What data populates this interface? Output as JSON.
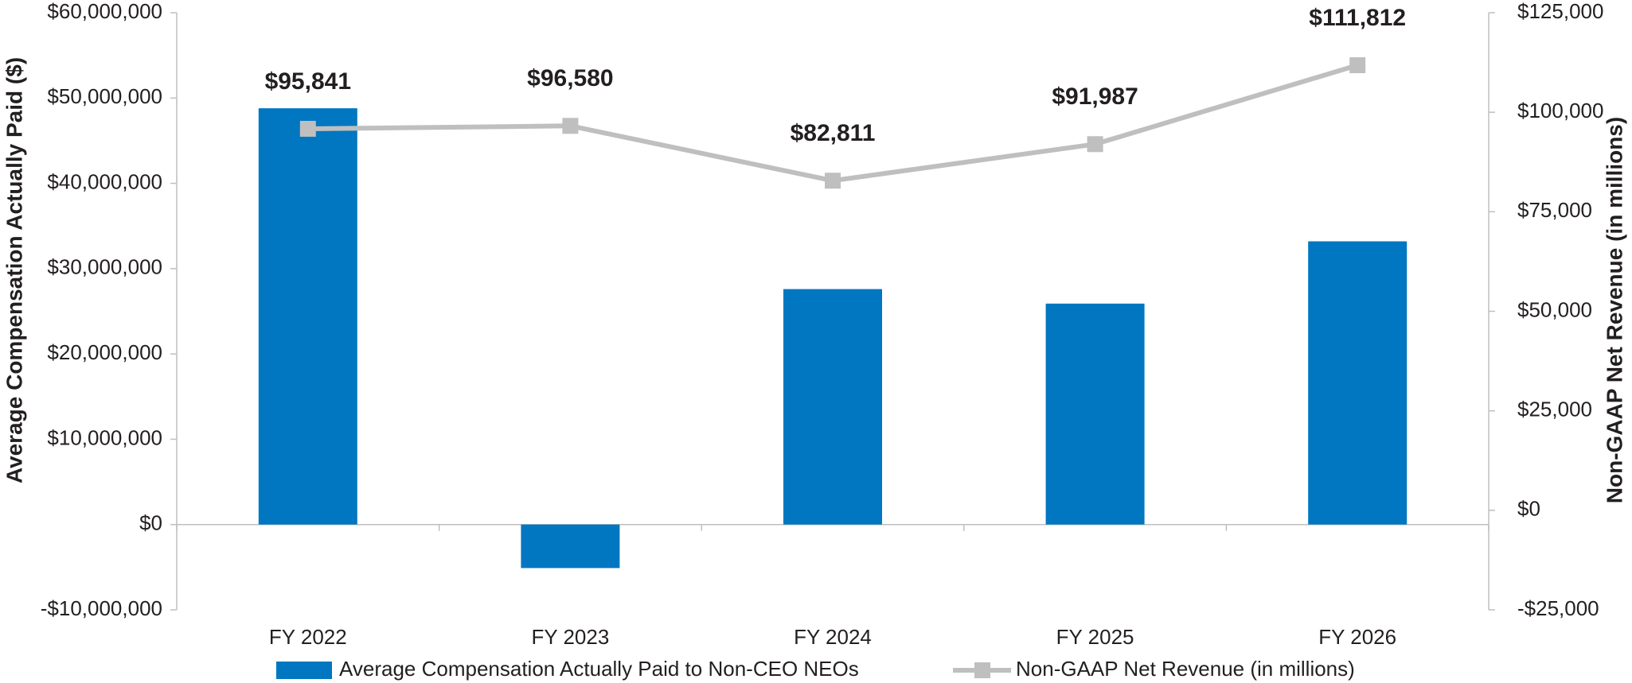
{
  "chart_data": {
    "type": "bar-line",
    "y_label": "Average Compensation Actually Paid ($)",
    "y2_label": "Non-GAAP Net Revenue (in millions)",
    "categories": [
      "FY 2022",
      "FY 2023",
      "FY 2024",
      "FY 2025",
      "FY 2026"
    ],
    "series": [
      {
        "name": "Average Compensation Actually Paid to Non-CEO NEOs",
        "type": "bar",
        "color": "#0077c0",
        "axis": "y",
        "values": [
          48800000,
          -5100000,
          27600000,
          25900000,
          33200000
        ]
      },
      {
        "name": "Non-GAAP Net Revenue (in millions)",
        "type": "line",
        "color": "#bfbfbf",
        "axis": "y2",
        "values": [
          95841,
          96580,
          82811,
          91987,
          111812
        ],
        "value_labels": [
          "$95,841",
          "$96,580",
          "$82,811",
          "$91,987",
          "$111,812"
        ]
      }
    ],
    "ylim": [
      -10000000,
      60000000
    ],
    "yticks": [
      {
        "value": -10000000,
        "label": "-$10,000,000"
      },
      {
        "value": 0,
        "label": "$0"
      },
      {
        "value": 10000000,
        "label": "$10,000,000"
      },
      {
        "value": 20000000,
        "label": "$20,000,000"
      },
      {
        "value": 30000000,
        "label": "$30,000,000"
      },
      {
        "value": 40000000,
        "label": "$40,000,000"
      },
      {
        "value": 50000000,
        "label": "$50,000,000"
      },
      {
        "value": 60000000,
        "label": "$60,000,000"
      }
    ],
    "y2lim": [
      -25000,
      125000
    ],
    "y2ticks": [
      {
        "value": -25000,
        "label": "-$25,000"
      },
      {
        "value": 0,
        "label": "$0"
      },
      {
        "value": 25000,
        "label": "$25,000"
      },
      {
        "value": 50000,
        "label": "$50,000"
      },
      {
        "value": 75000,
        "label": "$75,000"
      },
      {
        "value": 100000,
        "label": "$100,000"
      },
      {
        "value": 125000,
        "label": "$125,000"
      }
    ],
    "grid": false,
    "legend": "bottom"
  }
}
